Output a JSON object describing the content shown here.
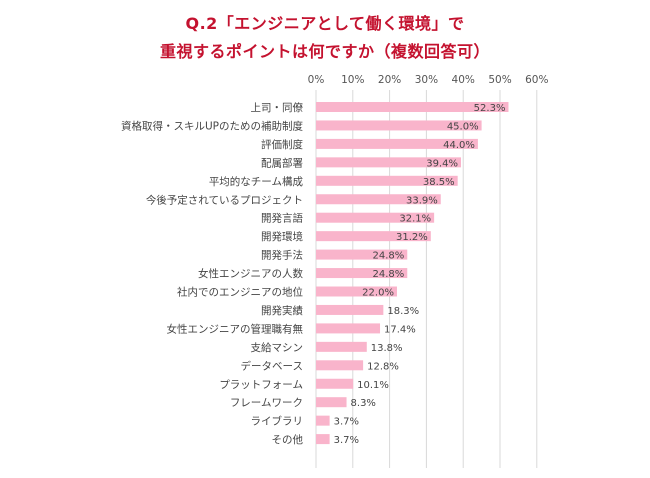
{
  "chart_data": {
    "type": "bar",
    "orientation": "horizontal",
    "title_line1": "Q.2「エンジニアとして働く環境」で",
    "title_line2": "重視するポイントは何ですか（複数回答可）",
    "categories": [
      "上司・同僚",
      "資格取得・スキルUPのための補助制度",
      "評価制度",
      "配属部署",
      "平均的なチーム構成",
      "今後予定されているプロジェクト",
      "開発言語",
      "開発環境",
      "開発手法",
      "女性エンジニアの人数",
      "社内でのエンジニアの地位",
      "開発実績",
      "女性エンジニアの管理職有無",
      "支給マシン",
      "データベース",
      "プラットフォーム",
      "フレームワーク",
      "ライブラリ",
      "その他"
    ],
    "values": [
      52.3,
      45.0,
      44.0,
      39.4,
      38.5,
      33.9,
      32.1,
      31.2,
      24.8,
      24.8,
      22.0,
      18.3,
      17.4,
      13.8,
      12.8,
      10.1,
      8.3,
      3.7,
      3.7
    ],
    "value_labels": [
      "52.3%",
      "45.0%",
      "44.0%",
      "39.4%",
      "38.5%",
      "33.9%",
      "32.1%",
      "31.2%",
      "24.8%",
      "24.8%",
      "22.0%",
      "18.3%",
      "17.4%",
      "13.8%",
      "12.8%",
      "10.1%",
      "8.3%",
      "3.7%",
      "3.7%"
    ],
    "xlim": [
      0,
      60
    ],
    "ticks": [
      0,
      10,
      20,
      30,
      40,
      50,
      60
    ],
    "tick_labels": [
      "0%",
      "10%",
      "20%",
      "30%",
      "40%",
      "50%",
      "60%"
    ],
    "grid": true,
    "colors": {
      "bar": "#f9b4cb",
      "title": "#c4122f",
      "grid": "#d9d9d9"
    }
  }
}
